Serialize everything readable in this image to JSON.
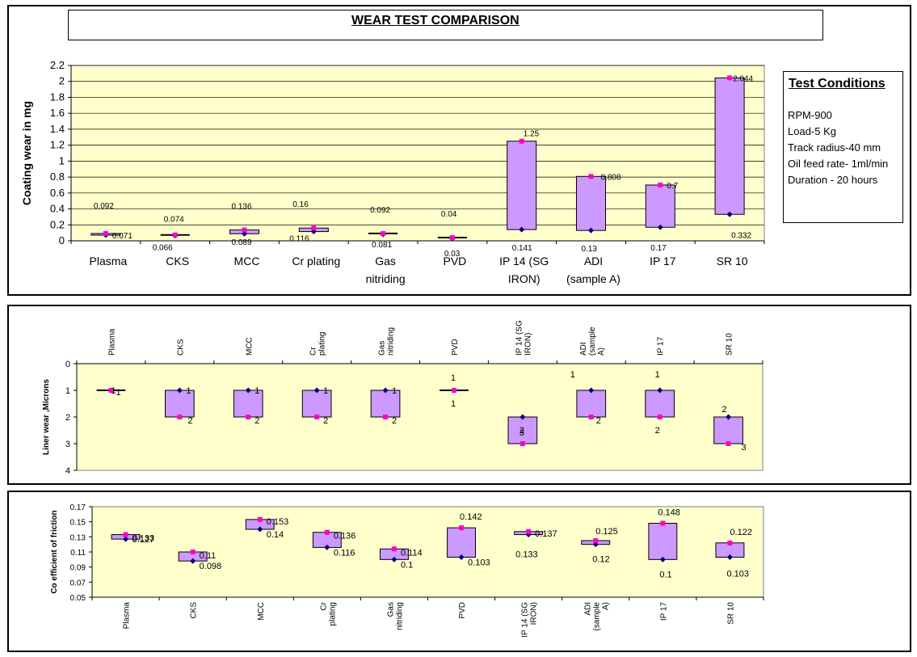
{
  "title": "WEAR TEST COMPARISON",
  "test_conditions": {
    "heading": "Test Conditions",
    "lines": [
      "RPM-900",
      "Load-5 Kg",
      "Track radius-40 mm",
      "Oil feed rate- 1ml/min",
      "Duration - 20 hours"
    ]
  },
  "colors": {
    "plot_bg": "#ffffcc",
    "box_fill": "#cc99ff",
    "high_marker": "#ff00cc",
    "low_marker": "#000080"
  },
  "chart_data": [
    {
      "type": "high-low",
      "ylabel": "Coating wear in mg",
      "ylim": [
        0,
        2.2
      ],
      "yticks": [
        "0",
        "0.2",
        "0.4",
        "0.6",
        "0.8",
        "1",
        "1.2",
        "1.4",
        "1.6",
        "1.8",
        "2",
        "2.2"
      ],
      "grid": true,
      "categories": [
        "Plasma",
        "CKS",
        "MCC",
        "Cr plating",
        "Gas\nnitriding",
        "PVD",
        "IP 14 (SG\nIRON)",
        "ADI\n(sample A)",
        "IP 17",
        "SR 10"
      ],
      "series": [
        {
          "values": [
            0.092,
            0.074,
            0.136,
            0.16,
            0.092,
            0.04,
            1.25,
            0.808,
            0.7,
            2.044
          ]
        },
        {
          "values": [
            0.071,
            0.066,
            0.089,
            0.116,
            0.081,
            0.03,
            0.141,
            0.13,
            0.17,
            0.332
          ]
        }
      ]
    },
    {
      "type": "high-low",
      "ylabel": "Liner wear ,Microns",
      "ylim": [
        0,
        4
      ],
      "reversed_y": true,
      "yticks": [
        "0",
        "1",
        "2",
        "3",
        "4"
      ],
      "grid": false,
      "categories": [
        "Plasma",
        "CKS",
        "MCC",
        "Cr\nplating",
        "Gas\nnitriding",
        "PVD",
        "IP 14 (SG\nIRON)",
        "ADI\n(sample\nA)",
        "IP 17",
        "SR 10"
      ],
      "series": [
        {
          "values": [
            1,
            2,
            2,
            2,
            2,
            1,
            3,
            2,
            2,
            3
          ]
        },
        {
          "values": [
            1,
            1,
            1,
            1,
            1,
            1,
            2,
            1,
            1,
            2
          ]
        }
      ]
    },
    {
      "type": "high-low",
      "ylabel": "Co efficient of friction",
      "ylim": [
        0.05,
        0.17
      ],
      "yticks": [
        "0.17",
        "0.15",
        "0.13",
        "0.11",
        "0.09",
        "0.07",
        "0.05"
      ],
      "grid": false,
      "categories": [
        "Plasma",
        "CKS",
        "MCC",
        "Cr\nplating",
        "Gas\nnitriding",
        "PVD",
        "IP 14 (SG\nIRON)",
        "ADI\n(sample\nA)",
        "IP 17",
        "SR 10"
      ],
      "series": [
        {
          "values": [
            0.133,
            0.11,
            0.153,
            0.136,
            0.114,
            0.142,
            0.137,
            0.125,
            0.148,
            0.122
          ]
        },
        {
          "values": [
            0.127,
            0.098,
            0.14,
            0.116,
            0.1,
            0.103,
            0.133,
            0.12,
            0.1,
            0.103
          ]
        }
      ]
    }
  ]
}
